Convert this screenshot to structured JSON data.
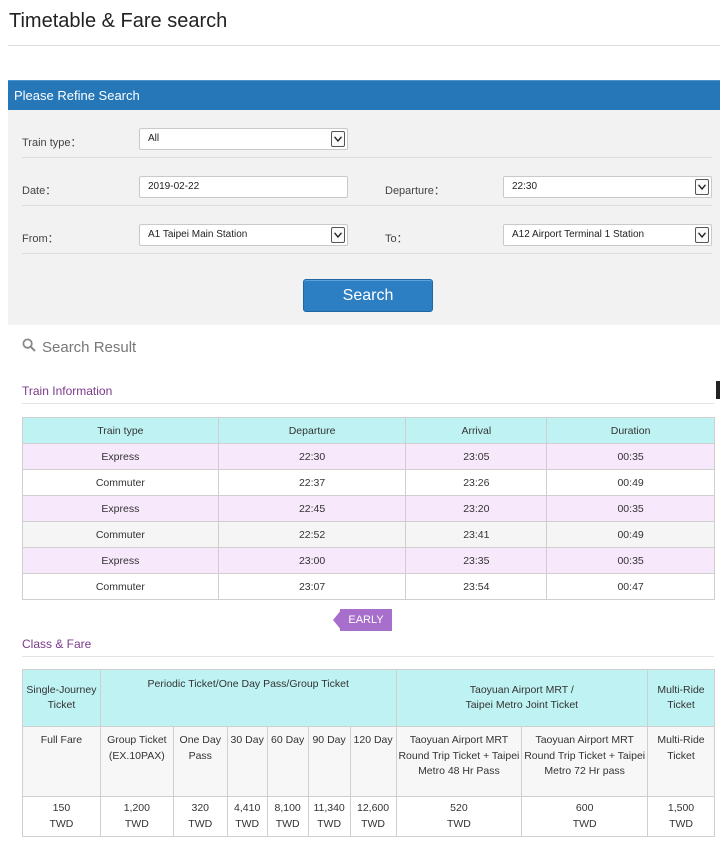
{
  "page": {
    "title": "Timetable & Fare search"
  },
  "refine": {
    "header": "Please Refine Search",
    "train_type": {
      "label": "Train type：",
      "value": "All"
    },
    "date": {
      "label": "Date：",
      "value": "2019-02-22"
    },
    "departure": {
      "label": "Departure：",
      "value": "22:30"
    },
    "from": {
      "label": "From：",
      "value": "A1 Taipei Main Station"
    },
    "to": {
      "label": "To：",
      "value": "A12 Airport Terminal 1 Station"
    },
    "search_label": "Search"
  },
  "result": {
    "title": "Search Result",
    "train_info_title": "Train Information",
    "columns": [
      "Train type",
      "Departure",
      "Arrival",
      "Duration"
    ],
    "rows": [
      {
        "type": "Express",
        "departure": "22:30",
        "arrival": "23:05",
        "duration": "00:35"
      },
      {
        "type": "Commuter",
        "departure": "22:37",
        "arrival": "23:26",
        "duration": "00:49"
      },
      {
        "type": "Express",
        "departure": "22:45",
        "arrival": "23:20",
        "duration": "00:35"
      },
      {
        "type": "Commuter",
        "departure": "22:52",
        "arrival": "23:41",
        "duration": "00:49"
      },
      {
        "type": "Express",
        "departure": "23:00",
        "arrival": "23:35",
        "duration": "00:35"
      },
      {
        "type": "Commuter",
        "departure": "23:07",
        "arrival": "23:54",
        "duration": "00:47"
      }
    ],
    "early_label": "EARLY"
  },
  "fare": {
    "title": "Class & Fare",
    "groups": {
      "single": "Single-Journey Ticket",
      "periodic": "Periodic Ticket/One Day Pass/Group Ticket",
      "joint_line1": "Taoyuan Airport MRT /",
      "joint_line2": "Taipei Metro  Joint Ticket",
      "multi": "Multi-Ride Ticket"
    },
    "subheaders": {
      "full_fare": "Full Fare",
      "group": "Group Ticket (EX.10PAX)",
      "one_day": "One Day Pass",
      "d30": "30 Day",
      "d60": "60 Day",
      "d90": "90 Day",
      "d120": "120 Day",
      "rt48": "Taoyuan Airport MRT Round Trip Ticket + Taipei Metro 48 Hr Pass",
      "rt72": "Taoyuan Airport MRT Round Trip Ticket + Taipei Metro 72 Hr pass",
      "multi": "Multi-Ride Ticket"
    },
    "currency": "TWD",
    "prices": {
      "full_fare": "150",
      "group": "1,200",
      "one_day": "320",
      "d30": "4,410",
      "d60": "8,100",
      "d90": "11,340",
      "d120": "12,600",
      "rt48": "520",
      "rt72": "600",
      "multi": "1,500"
    }
  },
  "colors": {
    "accent": "#2577b8",
    "header_cell": "#bff2f2",
    "row_highlight": "#f7e8fb",
    "section_title": "#7b3a8c",
    "early_tab": "#a86ecb"
  }
}
